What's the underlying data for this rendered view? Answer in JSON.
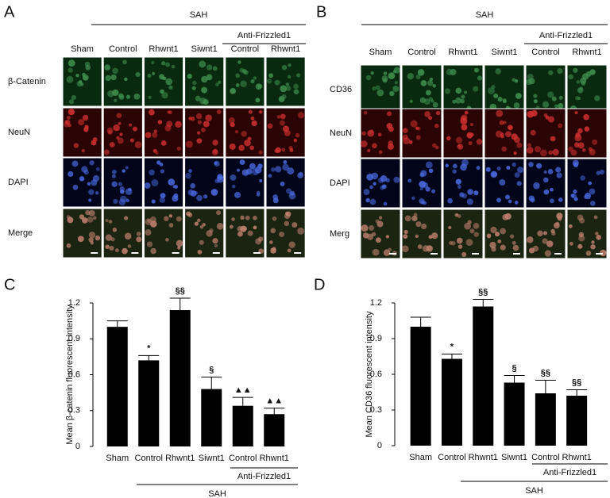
{
  "panels": [
    {
      "letter": "A",
      "group": "SAH",
      "subgroup": "Anti-Frizzled1",
      "columns": [
        "Sham",
        "Control",
        "Rhwnt1",
        "Siwnt1",
        "Control",
        "Rhwnt1"
      ],
      "rows": [
        "β-Catenin",
        "NeuN",
        "DAPI",
        "Merge"
      ]
    },
    {
      "letter": "B",
      "group": "SAH",
      "subgroup": "Anti-Frizzled1",
      "columns": [
        "Sham",
        "Control",
        "Rhwnt1",
        "Siwnt1",
        "Control",
        "Rhwnt1"
      ],
      "rows": [
        "CD36",
        "NeuN",
        "DAPI",
        "Merg"
      ]
    }
  ],
  "chart_data": [
    {
      "type": "bar",
      "letter": "C",
      "ylabel": "Mean β-catenin fluorescent intensity",
      "categories": [
        "Sham",
        "Control",
        "Rhwnt1",
        "Siwnt1",
        "Control",
        "Rhwnt1"
      ],
      "values": [
        1.0,
        0.72,
        1.14,
        0.48,
        0.34,
        0.27
      ],
      "errors": [
        0.05,
        0.04,
        0.1,
        0.1,
        0.07,
        0.05
      ],
      "annotations": [
        null,
        "*",
        "§§",
        "§",
        "▲▲",
        "▲▲"
      ],
      "color": "#000000",
      "ylim": [
        0,
        1.2
      ],
      "yticks": [
        0,
        0.3,
        0.6,
        0.9,
        1.2
      ],
      "subgroup": "Anti-Frizzled1",
      "group": "SAH"
    },
    {
      "type": "bar",
      "letter": "D",
      "ylabel": "Mean CD36 fluorescent intensity",
      "categories": [
        "Sham",
        "Control",
        "Rhwnt1",
        "Siwnt1",
        "Control",
        "Rhwnt1"
      ],
      "values": [
        1.0,
        0.73,
        1.17,
        0.53,
        0.44,
        0.42
      ],
      "errors": [
        0.08,
        0.04,
        0.06,
        0.06,
        0.11,
        0.05
      ],
      "annotations": [
        null,
        "*",
        "§§",
        "§",
        "§§",
        "§§"
      ],
      "color": "#000000",
      "ylim": [
        0,
        1.2
      ],
      "yticks": [
        0,
        0.3,
        0.6,
        0.9,
        1.2
      ],
      "subgroup": "Anti-Frizzled1",
      "group": "SAH"
    }
  ]
}
